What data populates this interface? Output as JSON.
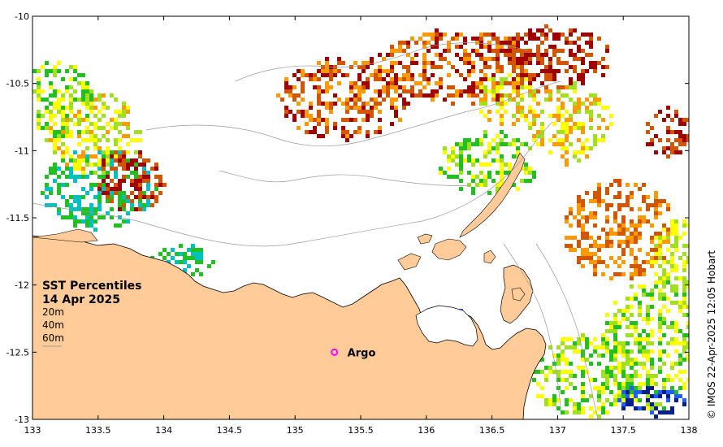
{
  "map": {
    "legend": {
      "title": "SST Percentiles",
      "date": "14 Apr 2025",
      "depths": [
        "20m",
        "40m",
        "60m"
      ]
    },
    "argo_label": "Argo",
    "argo_position": {
      "lon": 135.3,
      "lat": -12.5
    },
    "credit": "© IMOS 22-Apr-2025 12:05 Hobart",
    "axes": {
      "lon_range": [
        133,
        138
      ],
      "lat_range": [
        -13,
        -10
      ],
      "x_ticks": [
        "133",
        "133.5",
        "134",
        "134.5",
        "135",
        "135.5",
        "136",
        "136.5",
        "137",
        "137.5",
        "138"
      ],
      "y_ticks": [
        "-10",
        "-10.5",
        "-11",
        "-11.5",
        "-12",
        "-12.5",
        "-13"
      ]
    },
    "colors": {
      "land": "#ffcc99",
      "ocean": "#ffffff",
      "argo_marker": "#ff00ff",
      "percentile_scale": [
        "#001f8f",
        "#1f5fff",
        "#00c0c0",
        "#20c020",
        "#a0e020",
        "#ffff00",
        "#ff9900",
        "#d45500",
        "#a00000"
      ]
    }
  }
}
